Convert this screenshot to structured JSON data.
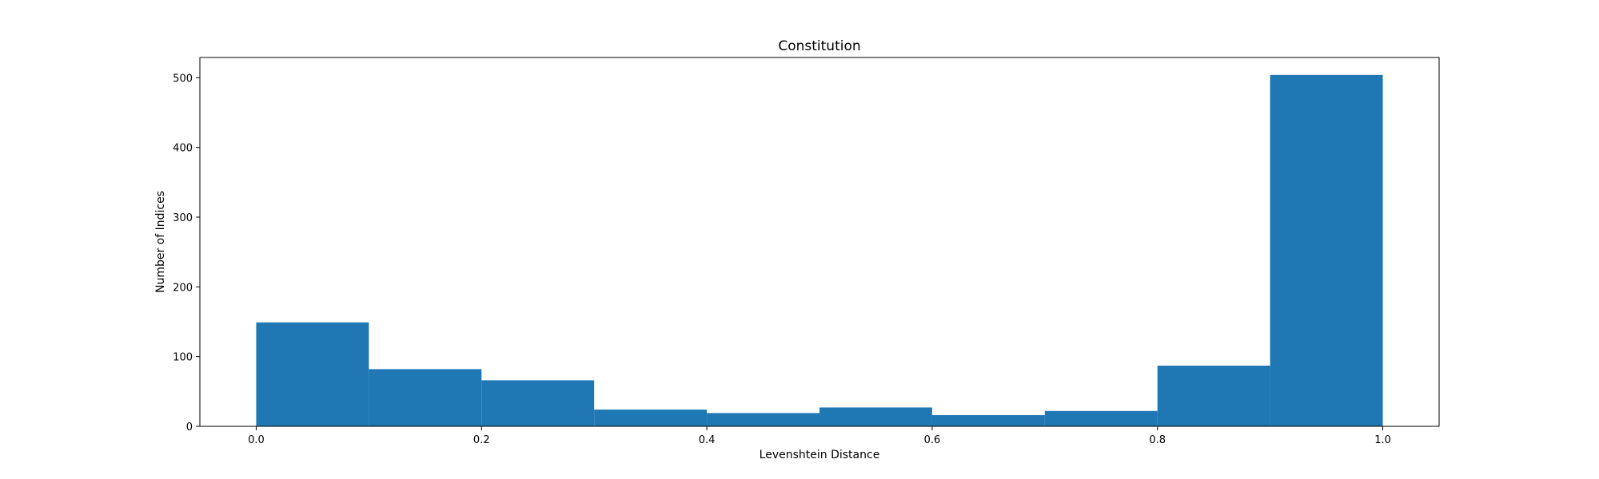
{
  "chart_data": {
    "type": "bar",
    "title": "Constitution",
    "xlabel": "Levenshtein Distance",
    "ylabel": "Number of Indices",
    "bin_edges": [
      0.0,
      0.1,
      0.2,
      0.3,
      0.4,
      0.5,
      0.6,
      0.7,
      0.8,
      0.9,
      1.0
    ],
    "values": [
      149,
      82,
      66,
      24,
      19,
      27,
      16,
      22,
      87,
      504
    ],
    "xlim": [
      -0.05,
      1.05
    ],
    "ylim": [
      0,
      529
    ],
    "xticks": [
      "0.0",
      "0.2",
      "0.4",
      "0.6",
      "0.8",
      "1.0"
    ],
    "xtick_values": [
      0.0,
      0.2,
      0.4,
      0.6,
      0.8,
      1.0
    ],
    "yticks": [
      "0",
      "100",
      "200",
      "300",
      "400",
      "500"
    ],
    "ytick_values": [
      0,
      100,
      200,
      300,
      400,
      500
    ],
    "bar_color": "#1f77b4",
    "grid": false
  }
}
